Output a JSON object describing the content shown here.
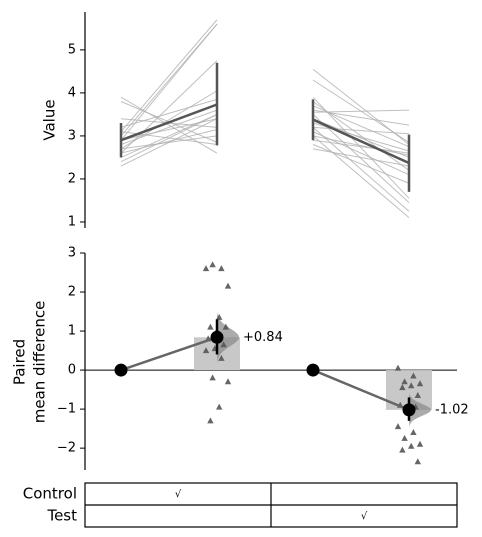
{
  "chart_data": [
    {
      "type": "slopegraph",
      "ylabel": "Value",
      "ylim": [
        0.86,
        5.88
      ],
      "yticks": [
        1,
        2,
        3,
        4,
        5
      ],
      "color": "#b0b0b0",
      "summary_color": "#555555",
      "groups": [
        {
          "control": [
            3.0,
            3.1,
            2.9,
            2.6,
            2.7,
            2.4,
            2.3,
            2.5,
            2.8,
            3.2,
            2.6,
            2.9,
            2.7,
            3.4,
            3.1,
            3.8,
            3.9
          ],
          "test": [
            5.6,
            5.7,
            5.6,
            4.75,
            4.05,
            3.5,
            3.4,
            3.5,
            3.6,
            3.85,
            3.15,
            3.4,
            3.0,
            3.2,
            2.8,
            2.85,
            2.6
          ],
          "mean": [
            2.9,
            3.73
          ],
          "low": [
            2.5,
            2.78
          ],
          "high": [
            3.3,
            4.7
          ]
        },
        {
          "control": [
            3.55,
            3.2,
            2.9,
            3.6,
            2.7,
            3.0,
            3.3,
            2.8,
            3.4,
            3.7,
            3.1,
            4.3,
            3.8,
            4.55,
            3.0,
            3.2,
            3.5,
            3.9
          ],
          "test": [
            3.6,
            3.05,
            2.6,
            3.25,
            2.3,
            2.55,
            2.65,
            1.9,
            2.5,
            2.75,
            2.1,
            2.85,
            2.2,
            2.8,
            1.1,
            1.25,
            1.45,
            1.55
          ],
          "mean": [
            3.38,
            2.37
          ],
          "low": [
            2.9,
            1.7
          ],
          "high": [
            3.85,
            3.03
          ]
        }
      ]
    },
    {
      "type": "delta",
      "ylabel": [
        "Paired",
        "mean difference"
      ],
      "ylim": [
        -2.56,
        3
      ],
      "yticks": [
        {
          "value": -2,
          "label": "−2"
        },
        {
          "value": -1,
          "label": "−1"
        },
        0,
        1,
        2,
        3
      ],
      "baseline": 0,
      "color": "#555555",
      "groups": [
        {
          "diffs": [
            2.6,
            2.6,
            2.7,
            2.15,
            1.35,
            1.1,
            1.1,
            1.0,
            0.8,
            0.65,
            0.55,
            0.5,
            0.3,
            -0.2,
            -0.3,
            -0.95,
            -1.3
          ],
          "mean": 0.84,
          "value_label": "+0.84",
          "ci": [
            0.4,
            1.3
          ]
        },
        {
          "diffs": [
            0.05,
            -0.15,
            -0.3,
            -0.35,
            -0.4,
            -0.45,
            -0.65,
            -0.9,
            -0.9,
            -0.95,
            -1.0,
            -1.45,
            -1.6,
            -1.75,
            -1.9,
            -1.95,
            -2.05,
            -2.35
          ],
          "mean": -1.02,
          "value_label": "-1.02",
          "ci": [
            -1.3,
            -0.7
          ]
        }
      ]
    }
  ],
  "table": {
    "rows": [
      {
        "label": "Control",
        "cells": [
          "√",
          null
        ]
      },
      {
        "label": "Test",
        "cells": [
          null,
          "√"
        ]
      }
    ]
  }
}
